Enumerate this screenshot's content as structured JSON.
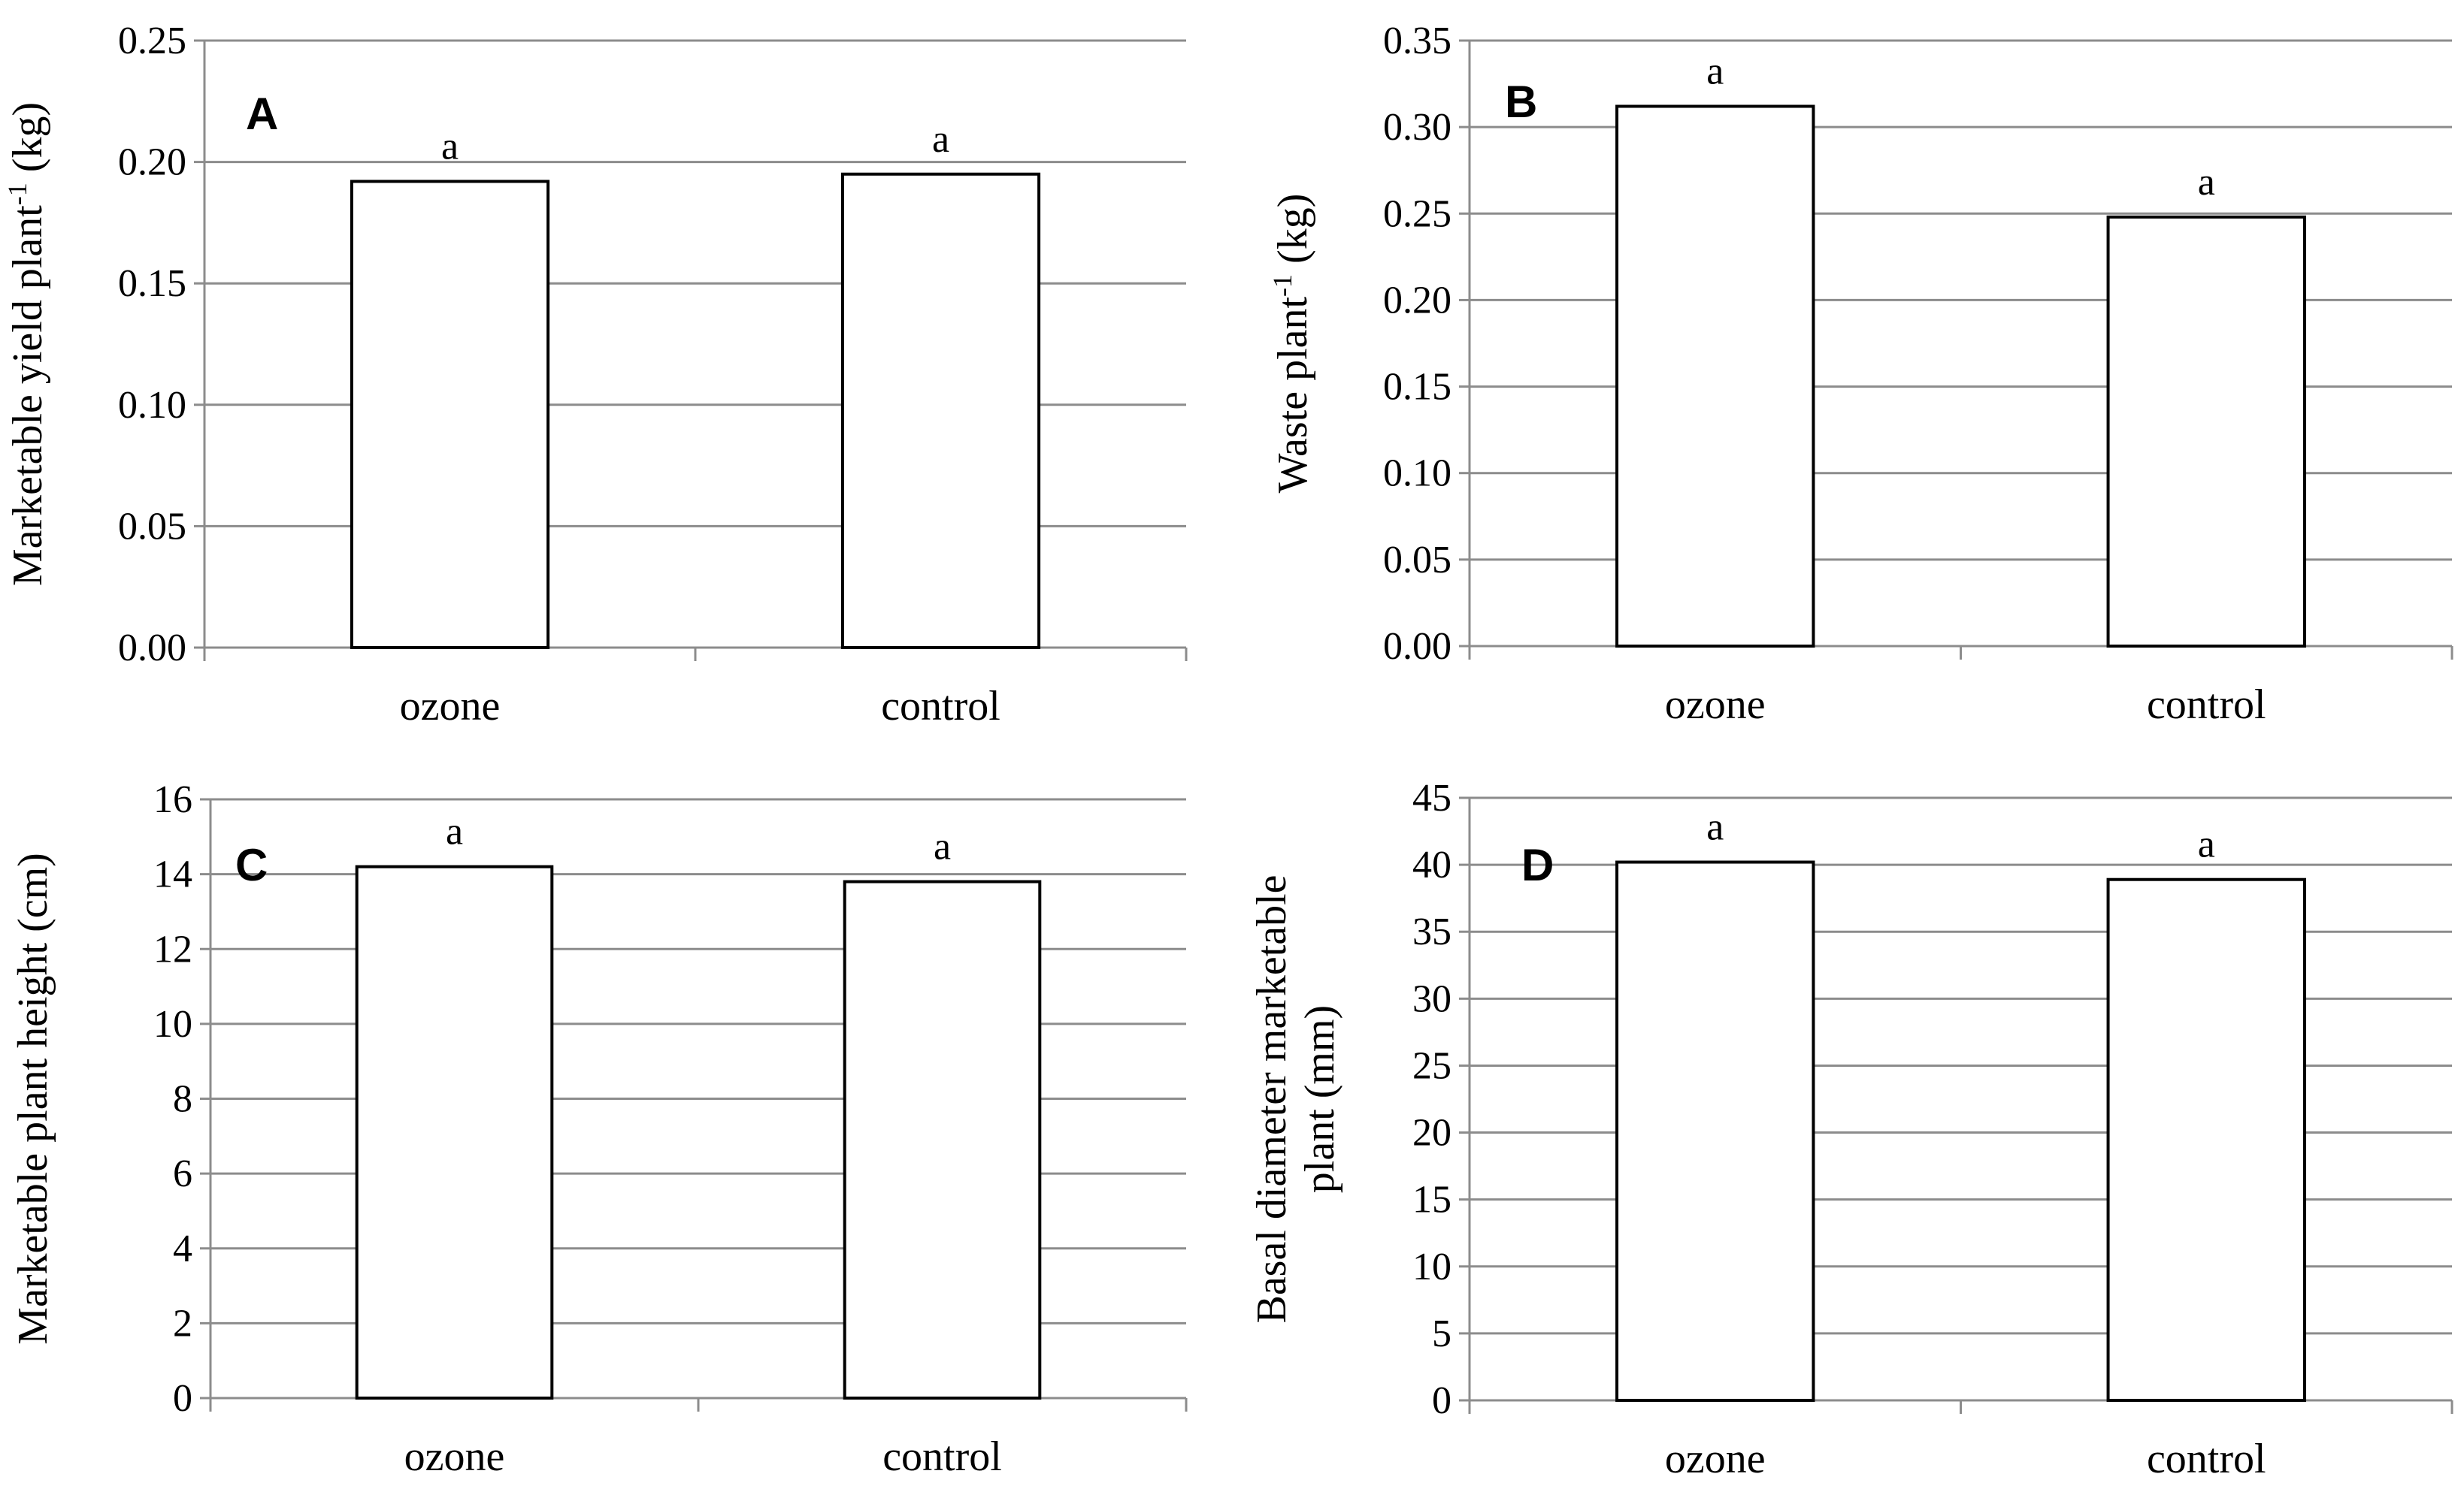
{
  "colors": {
    "bar_fill": "#ffffff",
    "bar_stroke": "#000000",
    "grid": "#8c8c8c",
    "axis": "#8c8c8c"
  },
  "chart_data": [
    {
      "panel": "A",
      "type": "bar",
      "categories": [
        "ozone",
        "control"
      ],
      "values": [
        0.192,
        0.195
      ],
      "significance_labels": [
        "a",
        "a"
      ],
      "ylabel": "Marketable yield plant-1 (kg)",
      "ylabel_parts": [
        "Marketable yield plant",
        "-1",
        " (kg)"
      ],
      "ylim": [
        0,
        0.25
      ],
      "yticks": [
        "0.00",
        "0.05",
        "0.10",
        "0.15",
        "0.20",
        "0.25"
      ],
      "grid": true,
      "legend": "none"
    },
    {
      "panel": "B",
      "type": "bar",
      "categories": [
        "ozone",
        "control"
      ],
      "values": [
        0.312,
        0.248
      ],
      "significance_labels": [
        "a",
        "a"
      ],
      "ylabel": "Waste plant-1 (kg)",
      "ylabel_parts": [
        "Waste plant",
        "-1",
        " (kg)"
      ],
      "ylim": [
        0,
        0.35
      ],
      "yticks": [
        "0.00",
        "0.05",
        "0.10",
        "0.15",
        "0.20",
        "0.25",
        "0.30",
        "0.35"
      ],
      "grid": true,
      "legend": "none"
    },
    {
      "panel": "C",
      "type": "bar",
      "categories": [
        "ozone",
        "control"
      ],
      "values": [
        14.2,
        13.8
      ],
      "significance_labels": [
        "a",
        "a"
      ],
      "ylabel": "Marketable plant height (cm)",
      "ylabel_parts": [
        "Marketable plant height (cm)"
      ],
      "ylim": [
        0,
        16
      ],
      "yticks": [
        "0",
        "2",
        "4",
        "6",
        "8",
        "10",
        "12",
        "14",
        "16"
      ],
      "grid": true,
      "legend": "none"
    },
    {
      "panel": "D",
      "type": "bar",
      "categories": [
        "ozone",
        "control"
      ],
      "values": [
        40.2,
        38.9
      ],
      "significance_labels": [
        "a",
        "a"
      ],
      "ylabel": "Basal diameter marketable plant (mm)",
      "ylabel_lines": [
        "Basal diameter marketable",
        "plant (mm)"
      ],
      "ylim": [
        0,
        45
      ],
      "yticks": [
        "0",
        "5",
        "10",
        "15",
        "20",
        "25",
        "30",
        "35",
        "40",
        "45"
      ],
      "grid": true,
      "legend": "none"
    }
  ]
}
